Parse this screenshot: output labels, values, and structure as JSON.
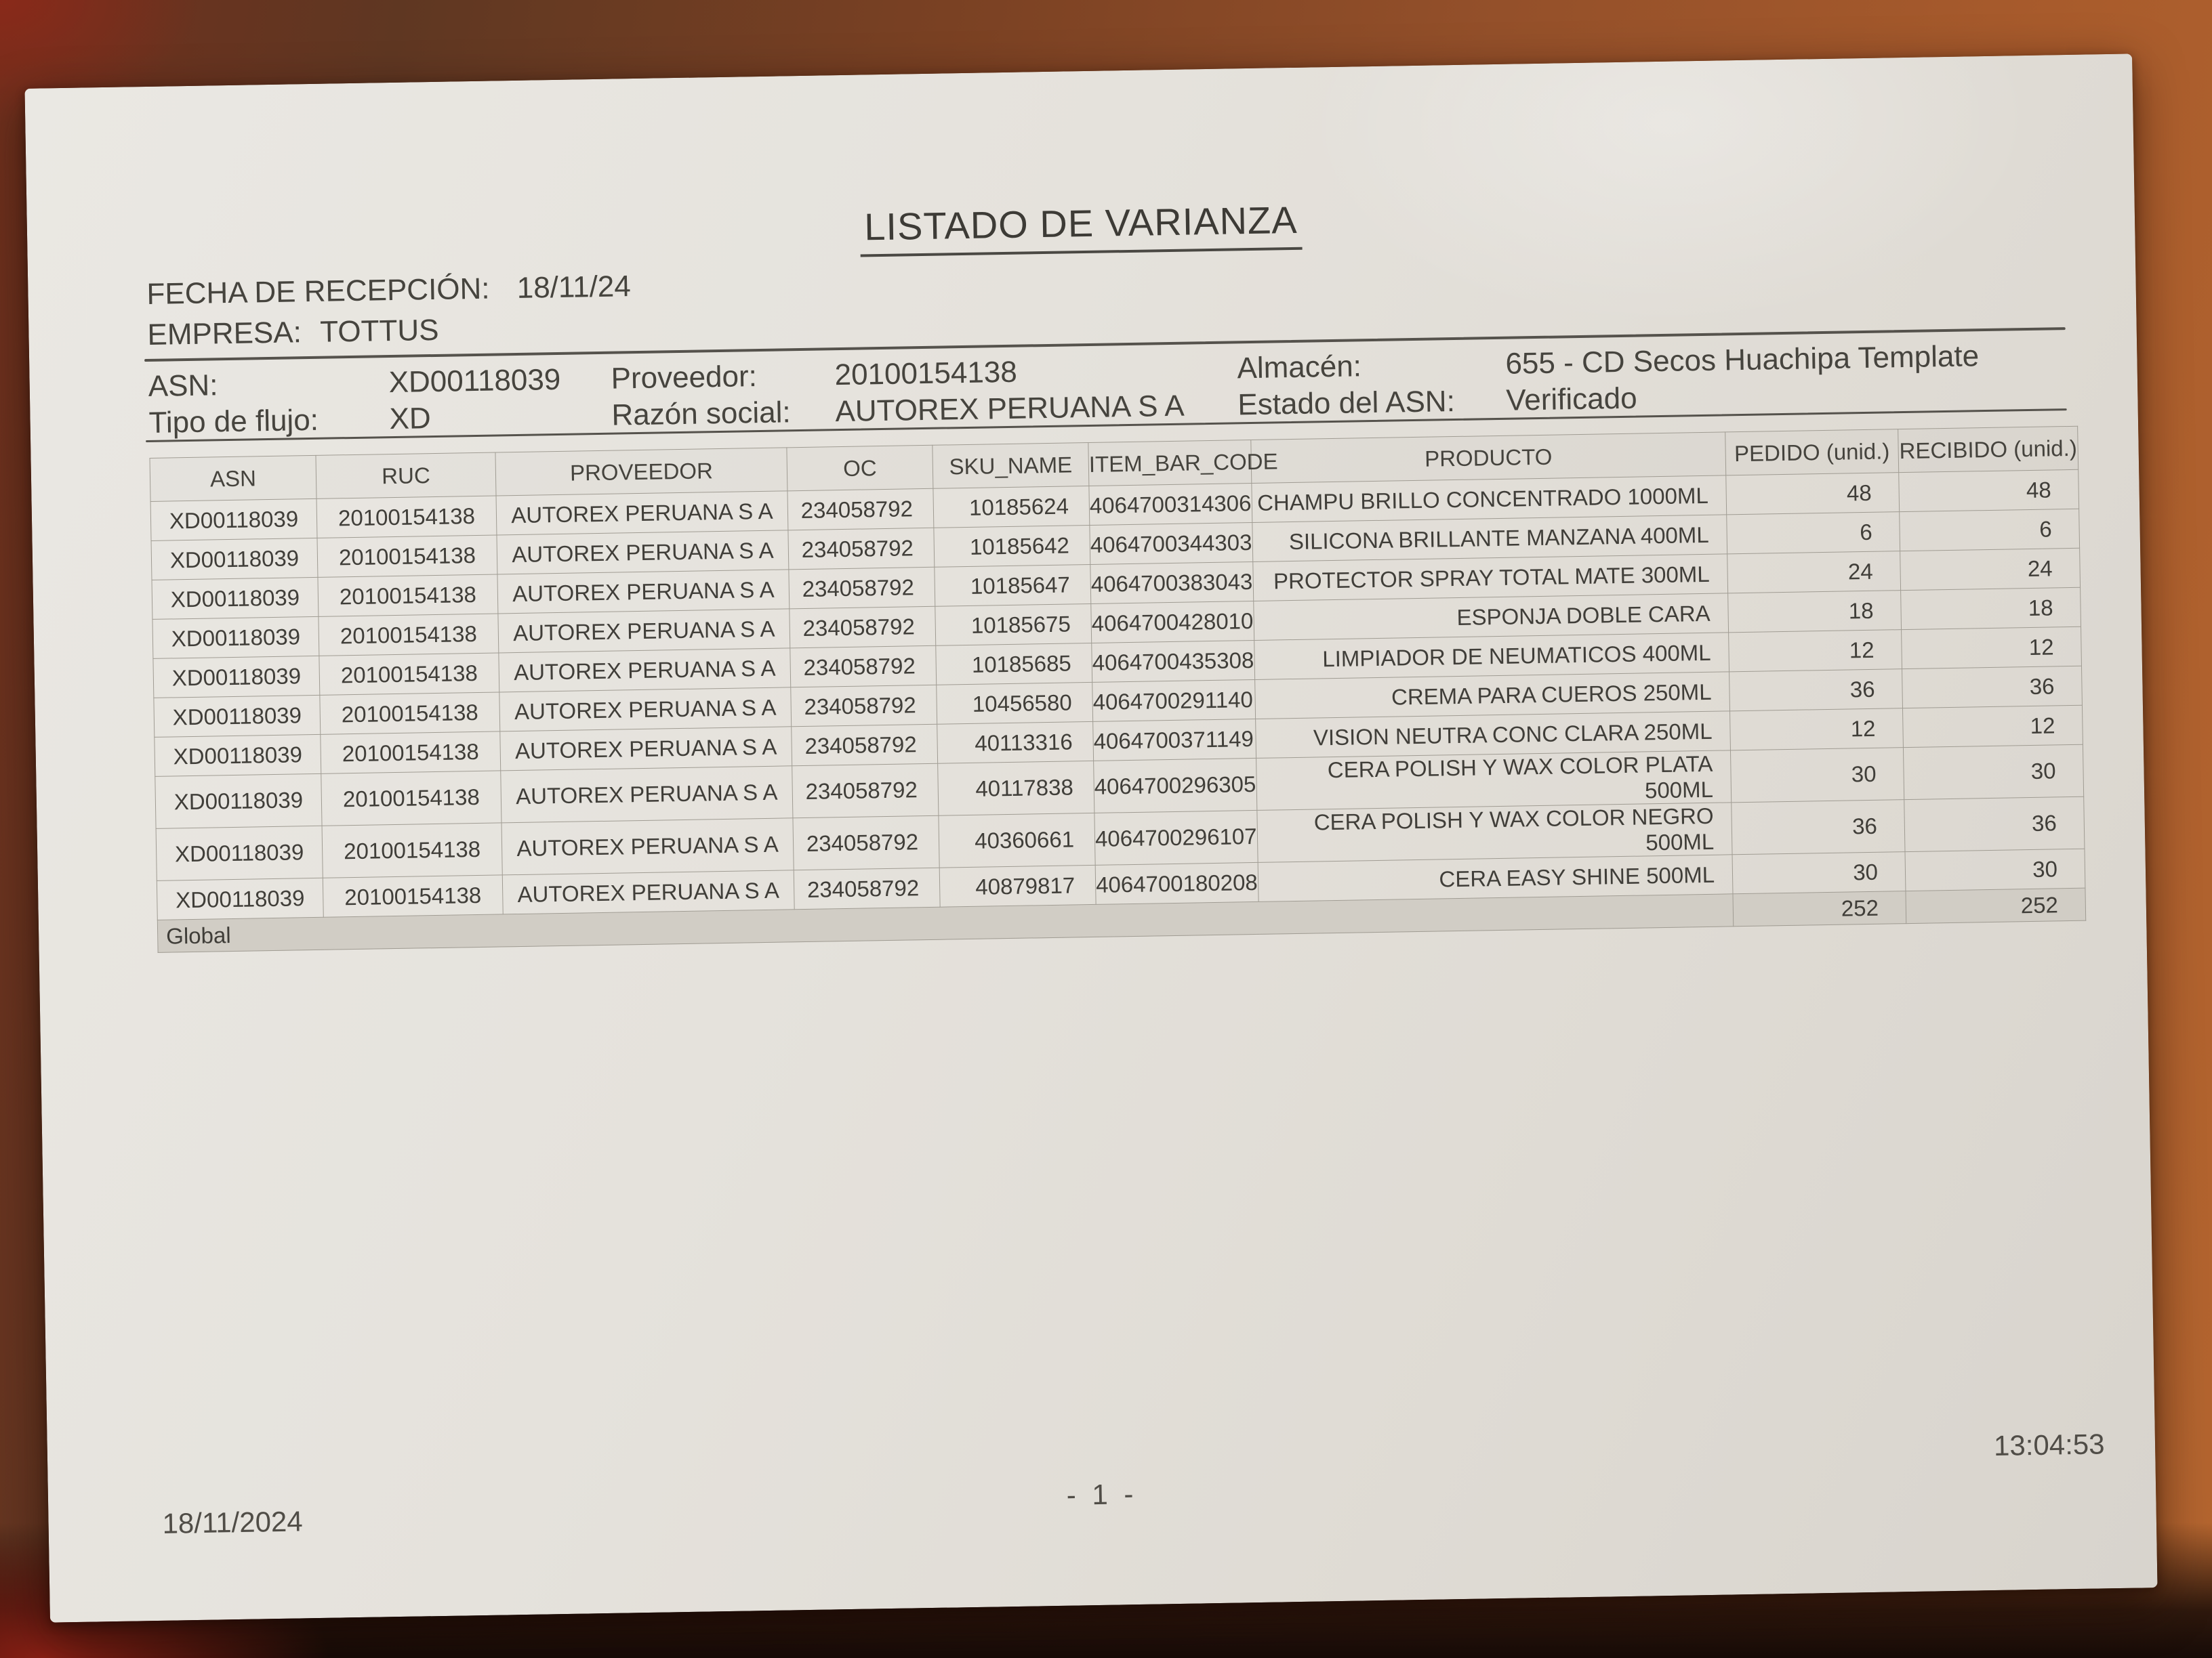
{
  "document": {
    "title": "LISTADO DE VARIANZA",
    "reception": {
      "label": "FECHA DE RECEPCIÓN:",
      "value": "18/11/24"
    },
    "company": {
      "label": "EMPRESA:",
      "value": "TOTTUS"
    },
    "meta": {
      "asn_label": "ASN:",
      "asn_value": "XD00118039",
      "proveedor_label": "Proveedor:",
      "proveedor_value": "20100154138",
      "almacen_label": "Almacén:",
      "almacen_value": "655 - CD Secos Huachipa Template",
      "tipo_flujo_label": "Tipo de flujo:",
      "tipo_flujo_value": "XD",
      "razon_social_label": "Razón social:",
      "razon_social_value": "AUTOREX PERUANA S A",
      "estado_asn_label": "Estado del ASN:",
      "estado_asn_value": "Verificado"
    },
    "table": {
      "headers": [
        "ASN",
        "RUC",
        "PROVEEDOR",
        "OC",
        "SKU_NAME",
        "ITEM_BAR_CODE",
        "PRODUCTO",
        "PEDIDO (unid.)",
        "RECIBIDO (unid.)"
      ],
      "rows": [
        [
          "XD00118039",
          "20100154138",
          "AUTOREX PERUANA S A",
          "234058792",
          "10185624",
          "4064700314306",
          "CHAMPU BRILLO CONCENTRADO 1000ML",
          "48",
          "48"
        ],
        [
          "XD00118039",
          "20100154138",
          "AUTOREX PERUANA S A",
          "234058792",
          "10185642",
          "4064700344303",
          "SILICONA BRILLANTE MANZANA 400ML",
          "6",
          "6"
        ],
        [
          "XD00118039",
          "20100154138",
          "AUTOREX PERUANA S A",
          "234058792",
          "10185647",
          "4064700383043",
          "PROTECTOR SPRAY TOTAL MATE 300ML",
          "24",
          "24"
        ],
        [
          "XD00118039",
          "20100154138",
          "AUTOREX PERUANA S A",
          "234058792",
          "10185675",
          "4064700428010",
          "ESPONJA DOBLE CARA",
          "18",
          "18"
        ],
        [
          "XD00118039",
          "20100154138",
          "AUTOREX PERUANA S A",
          "234058792",
          "10185685",
          "4064700435308",
          "LIMPIADOR DE NEUMATICOS 400ML",
          "12",
          "12"
        ],
        [
          "XD00118039",
          "20100154138",
          "AUTOREX PERUANA S A",
          "234058792",
          "10456580",
          "4064700291140",
          "CREMA PARA CUEROS 250ML",
          "36",
          "36"
        ],
        [
          "XD00118039",
          "20100154138",
          "AUTOREX PERUANA S A",
          "234058792",
          "40113316",
          "4064700371149",
          "VISION NEUTRA CONC CLARA 250ML",
          "12",
          "12"
        ],
        [
          "XD00118039",
          "20100154138",
          "AUTOREX PERUANA S A",
          "234058792",
          "40117838",
          "4064700296305",
          "CERA POLISH Y WAX COLOR PLATA 500ML",
          "30",
          "30"
        ],
        [
          "XD00118039",
          "20100154138",
          "AUTOREX PERUANA S A",
          "234058792",
          "40360661",
          "4064700296107",
          "CERA POLISH Y WAX COLOR NEGRO 500ML",
          "36",
          "36"
        ],
        [
          "XD00118039",
          "20100154138",
          "AUTOREX PERUANA S A",
          "234058792",
          "40879817",
          "4064700180208",
          "CERA EASY SHINE 500ML",
          "30",
          "30"
        ]
      ],
      "total_label": "Global",
      "total_pedido": "252",
      "total_recibido": "252"
    },
    "footer": {
      "date": "18/11/2024",
      "page": "- 1 -",
      "time": "13:04:53"
    }
  }
}
